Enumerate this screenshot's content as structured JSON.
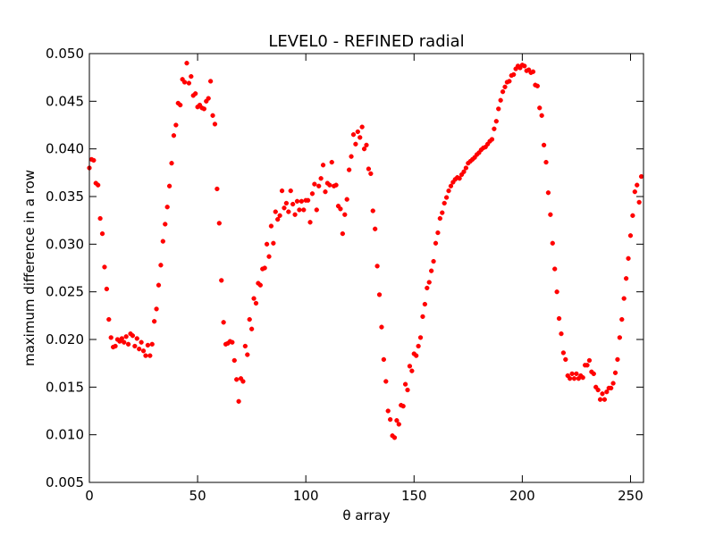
{
  "chart_data": {
    "type": "scatter",
    "title": "LEVEL0 - REFINED radial",
    "xlabel": "θ array",
    "ylabel": "maximum difference in a row",
    "color": "#ff0000",
    "x": [
      0,
      1,
      2,
      3,
      4,
      5,
      6,
      7,
      8,
      9,
      10,
      11,
      12,
      13,
      14,
      15,
      16,
      17,
      18,
      19,
      20,
      21,
      22,
      23,
      24,
      25,
      26,
      27,
      28,
      29,
      30,
      31,
      32,
      33,
      34,
      35,
      36,
      37,
      38,
      39,
      40,
      41,
      42,
      43,
      44,
      45,
      46,
      47,
      48,
      49,
      50,
      51,
      52,
      53,
      54,
      55,
      56,
      57,
      58,
      59,
      60,
      61,
      62,
      63,
      64,
      65,
      66,
      67,
      68,
      69,
      70,
      71,
      72,
      73,
      74,
      75,
      76,
      77,
      78,
      79,
      80,
      81,
      82,
      83,
      84,
      85,
      86,
      87,
      88,
      89,
      90,
      91,
      92,
      93,
      94,
      95,
      96,
      97,
      98,
      99,
      100,
      101,
      102,
      103,
      104,
      105,
      106,
      107,
      108,
      109,
      110,
      111,
      112,
      113,
      114,
      115,
      116,
      117,
      118,
      119,
      120,
      121,
      122,
      123,
      124,
      125,
      126,
      127,
      128,
      129,
      130,
      131,
      132,
      133,
      134,
      135,
      136,
      137,
      138,
      139,
      140,
      141,
      142,
      143,
      144,
      145,
      146,
      147,
      148,
      149,
      150,
      151,
      152,
      153,
      154,
      155,
      156,
      157,
      158,
      159,
      160,
      161,
      162,
      163,
      164,
      165,
      166,
      167,
      168,
      169,
      170,
      171,
      172,
      173,
      174,
      175,
      176,
      177,
      178,
      179,
      180,
      181,
      182,
      183,
      184,
      185,
      186,
      187,
      188,
      189,
      190,
      191,
      192,
      193,
      194,
      195,
      196,
      197,
      198,
      199,
      200,
      201,
      202,
      203,
      204,
      205,
      206,
      207,
      208,
      209,
      210,
      211,
      212,
      213,
      214,
      215,
      216,
      217,
      218,
      219,
      220,
      221,
      222,
      223,
      224,
      225,
      226,
      227,
      228,
      229,
      230,
      231,
      232,
      233,
      234,
      235,
      236,
      237,
      238,
      239,
      240,
      241,
      242,
      243,
      244,
      245,
      246,
      247,
      248,
      249,
      250,
      251,
      252,
      253,
      254,
      255
    ],
    "values": [
      0.038,
      0.0389,
      0.0388,
      0.0364,
      0.0362,
      0.0327,
      0.0311,
      0.0276,
      0.0253,
      0.0221,
      0.0202,
      0.0192,
      0.0193,
      0.02,
      0.0198,
      0.0201,
      0.0197,
      0.0203,
      0.0195,
      0.0206,
      0.0204,
      0.0193,
      0.0201,
      0.019,
      0.0197,
      0.0188,
      0.0183,
      0.0194,
      0.0183,
      0.0195,
      0.0219,
      0.0232,
      0.0257,
      0.0278,
      0.0303,
      0.0321,
      0.0339,
      0.0361,
      0.0385,
      0.0414,
      0.0425,
      0.0448,
      0.0446,
      0.0473,
      0.047,
      0.049,
      0.0469,
      0.0476,
      0.0456,
      0.0458,
      0.0444,
      0.0446,
      0.0443,
      0.0442,
      0.045,
      0.0453,
      0.0471,
      0.0435,
      0.0426,
      0.0358,
      0.0322,
      0.0262,
      0.0218,
      0.0195,
      0.0196,
      0.0198,
      0.0197,
      0.0178,
      0.0158,
      0.0135,
      0.0159,
      0.0156,
      0.0193,
      0.0184,
      0.0221,
      0.0211,
      0.0243,
      0.0238,
      0.0259,
      0.0257,
      0.0274,
      0.0275,
      0.03,
      0.0287,
      0.0319,
      0.0301,
      0.0334,
      0.0326,
      0.033,
      0.0356,
      0.0338,
      0.0343,
      0.0334,
      0.0356,
      0.0342,
      0.0331,
      0.0345,
      0.0336,
      0.0345,
      0.0336,
      0.0346,
      0.0346,
      0.0323,
      0.0353,
      0.0363,
      0.0336,
      0.0361,
      0.0369,
      0.0383,
      0.0355,
      0.0364,
      0.0362,
      0.0386,
      0.0361,
      0.0362,
      0.034,
      0.0337,
      0.0311,
      0.0331,
      0.0347,
      0.0378,
      0.0392,
      0.0415,
      0.0405,
      0.0418,
      0.0412,
      0.0423,
      0.04,
      0.0404,
      0.0379,
      0.0374,
      0.0335,
      0.0316,
      0.0277,
      0.0247,
      0.0213,
      0.0179,
      0.0156,
      0.0125,
      0.0116,
      0.0099,
      0.0097,
      0.0115,
      0.0111,
      0.0131,
      0.013,
      0.0153,
      0.0147,
      0.0172,
      0.0167,
      0.0185,
      0.0183,
      0.0193,
      0.0202,
      0.0224,
      0.0237,
      0.0254,
      0.026,
      0.0272,
      0.0282,
      0.0301,
      0.0312,
      0.0327,
      0.0333,
      0.0343,
      0.0349,
      0.0356,
      0.0361,
      0.0365,
      0.0368,
      0.037,
      0.0369,
      0.0373,
      0.0376,
      0.038,
      0.0385,
      0.0387,
      0.0389,
      0.0391,
      0.0394,
      0.0396,
      0.0399,
      0.0401,
      0.0402,
      0.0405,
      0.0408,
      0.041,
      0.0421,
      0.0429,
      0.0442,
      0.0451,
      0.046,
      0.0465,
      0.047,
      0.0471,
      0.0477,
      0.0478,
      0.0484,
      0.0487,
      0.0485,
      0.0488,
      0.0487,
      0.0482,
      0.0483,
      0.048,
      0.0481,
      0.0467,
      0.0466,
      0.0443,
      0.0435,
      0.0404,
      0.0386,
      0.0354,
      0.0331,
      0.0301,
      0.0274,
      0.025,
      0.0222,
      0.0206,
      0.0186,
      0.0179,
      0.0162,
      0.0159,
      0.0164,
      0.0159,
      0.0164,
      0.0159,
      0.0162,
      0.016,
      0.0173,
      0.0173,
      0.0178,
      0.0166,
      0.0164,
      0.015,
      0.0147,
      0.0137,
      0.0143,
      0.0137,
      0.0145,
      0.0149,
      0.0149,
      0.0154,
      0.0165,
      0.0179,
      0.0202,
      0.0221,
      0.0243,
      0.0264,
      0.0285,
      0.0309,
      0.033,
      0.0355,
      0.0362,
      0.0344,
      0.0371
    ],
    "xlim": [
      0,
      256
    ],
    "xticks": [
      0,
      50,
      100,
      150,
      200,
      250
    ],
    "ylim": [
      0.005,
      0.05
    ],
    "yticks": [
      0.005,
      {
        "value": 0.01,
        "label": "0.010"
      },
      0.015,
      {
        "value": 0.02,
        "label": "0.020"
      },
      0.025,
      {
        "value": 0.03,
        "label": "0.030"
      },
      0.035,
      {
        "value": 0.04,
        "label": "0.040"
      },
      0.045,
      {
        "value": 0.05,
        "label": "0.050"
      }
    ]
  }
}
